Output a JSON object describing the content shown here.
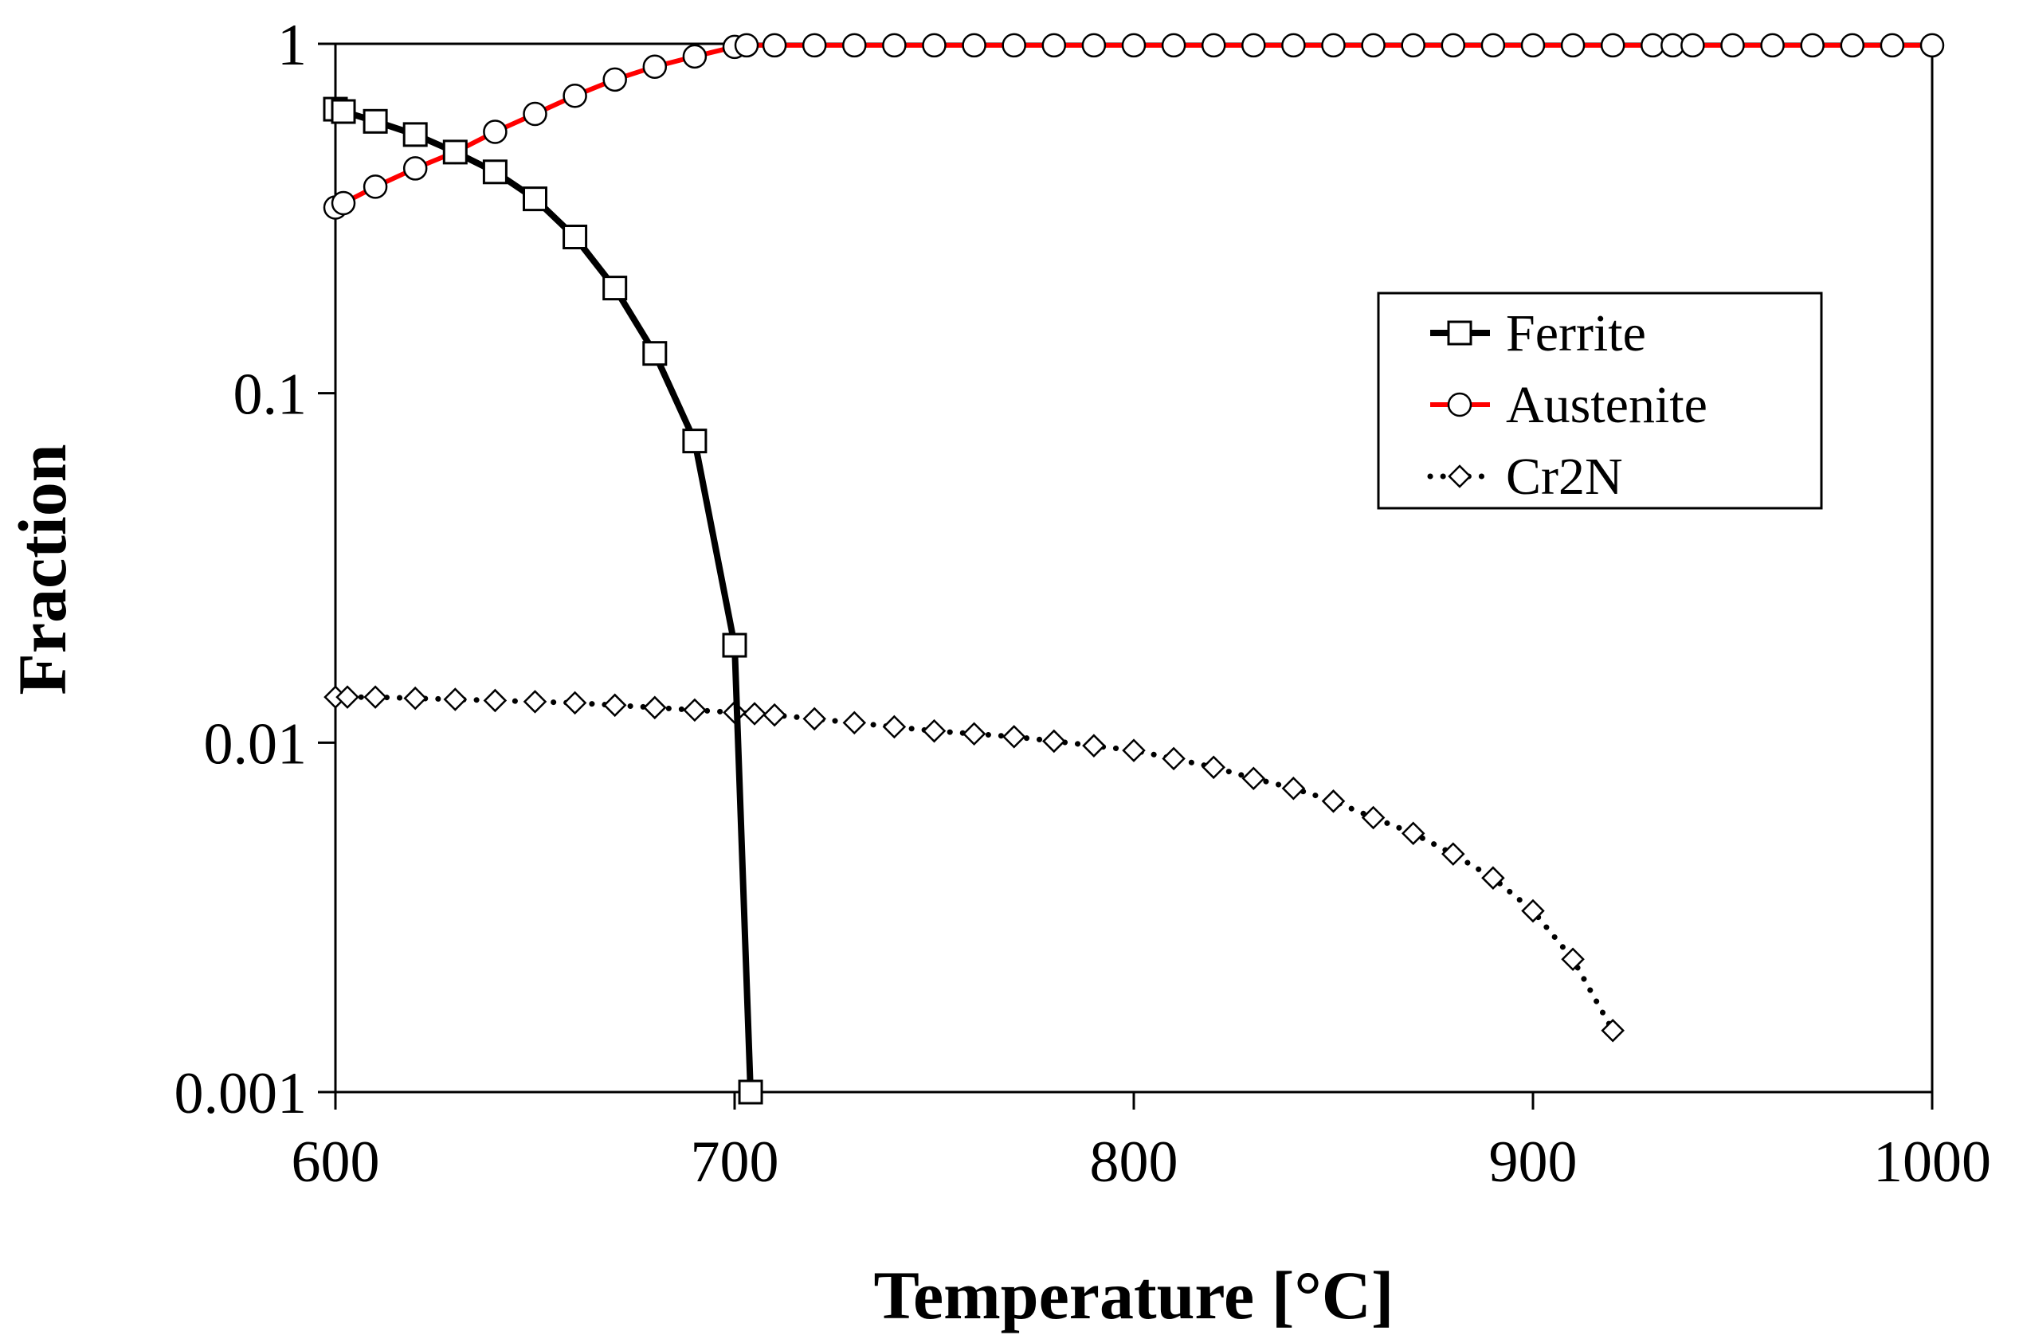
{
  "chart_data": {
    "type": "line",
    "title": "",
    "xlabel": "Temperature [°C]",
    "ylabel": "Fraction",
    "xlim": [
      600,
      1000
    ],
    "ylim": [
      0.001,
      1
    ],
    "yscale": "log",
    "grid": false,
    "legend_position": "top-right",
    "x_ticks": [
      600,
      700,
      800,
      900,
      1000
    ],
    "x_tick_labels": [
      "600",
      "700",
      "800",
      "900",
      "1000"
    ],
    "y_ticks": [
      0.001,
      0.01,
      0.1,
      1
    ],
    "y_tick_labels": [
      "0.001",
      "0.01",
      "0.1",
      "1"
    ],
    "series": [
      {
        "name": "Ferrite",
        "color": "#000000",
        "marker": "square",
        "line_style": "solid",
        "x": [
          600,
          602,
          610,
          620,
          630,
          640,
          650,
          660,
          670,
          680,
          690,
          700,
          704
        ],
        "y": [
          0.65,
          0.64,
          0.6,
          0.55,
          0.49,
          0.43,
          0.36,
          0.28,
          0.2,
          0.13,
          0.073,
          0.019,
          0.001
        ]
      },
      {
        "name": "Austenite",
        "color": "#ff0000",
        "marker": "circle",
        "line_style": "solid",
        "x": [
          600,
          602,
          610,
          620,
          630,
          640,
          650,
          660,
          670,
          680,
          690,
          700,
          703,
          710,
          720,
          730,
          740,
          750,
          760,
          770,
          780,
          790,
          800,
          810,
          820,
          830,
          840,
          850,
          860,
          870,
          880,
          890,
          900,
          910,
          920,
          930,
          935,
          940,
          950,
          960,
          970,
          980,
          990,
          1000
        ],
        "y": [
          0.34,
          0.35,
          0.39,
          0.44,
          0.49,
          0.56,
          0.63,
          0.71,
          0.79,
          0.86,
          0.92,
          0.98,
          0.99,
          0.99,
          0.99,
          0.99,
          0.99,
          0.99,
          0.99,
          0.99,
          0.99,
          0.99,
          0.99,
          0.99,
          0.99,
          0.99,
          0.99,
          0.99,
          0.99,
          0.99,
          0.99,
          0.99,
          0.99,
          0.99,
          0.99,
          0.99,
          0.99,
          0.99,
          0.99,
          0.99,
          0.99,
          0.99,
          0.99,
          0.99
        ]
      },
      {
        "name": "Cr2N",
        "color": "#000000",
        "marker": "diamond",
        "line_style": "dotted",
        "x": [
          600,
          603,
          610,
          620,
          630,
          640,
          650,
          660,
          670,
          680,
          690,
          700,
          705,
          710,
          720,
          730,
          740,
          750,
          760,
          770,
          780,
          790,
          800,
          810,
          820,
          830,
          840,
          850,
          860,
          870,
          880,
          890,
          900,
          910,
          920
        ],
        "y": [
          0.0135,
          0.0135,
          0.0135,
          0.0134,
          0.0133,
          0.0132,
          0.0131,
          0.013,
          0.0128,
          0.0126,
          0.0124,
          0.0122,
          0.0121,
          0.012,
          0.0117,
          0.0114,
          0.0111,
          0.0108,
          0.0106,
          0.0104,
          0.0101,
          0.0098,
          0.0095,
          0.009,
          0.0085,
          0.0079,
          0.0074,
          0.0068,
          0.0061,
          0.0055,
          0.0048,
          0.0041,
          0.0033,
          0.0024,
          0.0015
        ]
      }
    ]
  }
}
